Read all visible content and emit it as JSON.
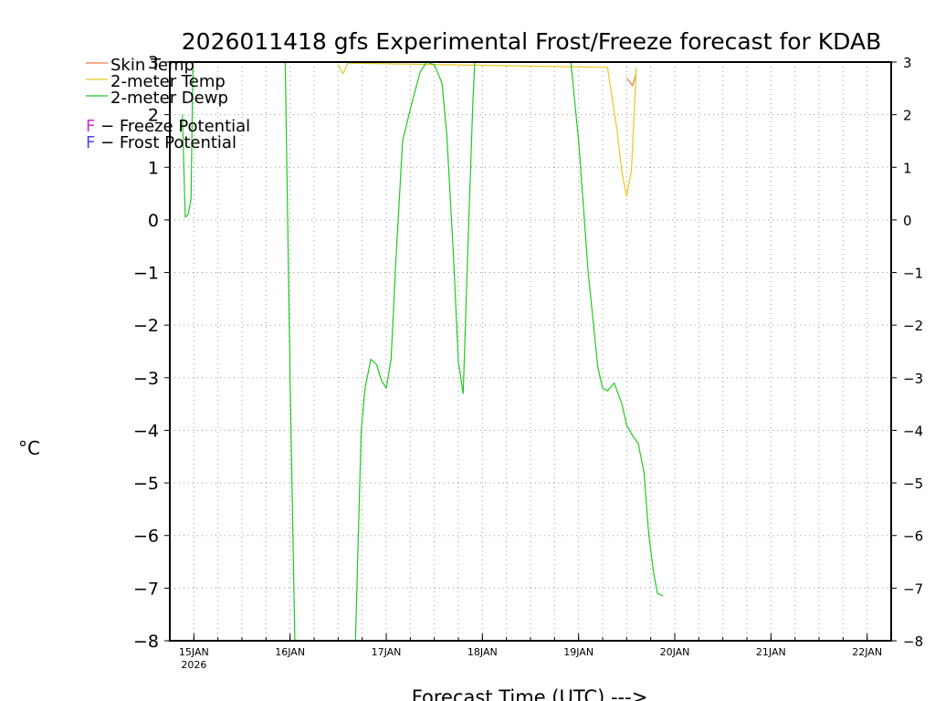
{
  "chart_data": {
    "type": "line",
    "title": "2026011418 gfs Experimental Frost/Freeze forecast for KDAB",
    "xlabel": "Forecast Time (UTC) --->",
    "ylabel": "°C",
    "ylim": [
      -8,
      3
    ],
    "yticks": [
      3,
      2,
      1,
      0,
      -1,
      -2,
      -3,
      -4,
      -5,
      -6,
      -7,
      -8
    ],
    "yticklabels": [
      "3",
      "2",
      "1",
      "0",
      "−1",
      "−2",
      "−3",
      "−4",
      "−5",
      "−6",
      "−7",
      "−8"
    ],
    "xlim_days": [
      14.75,
      22.25
    ],
    "xticks": [
      {
        "day": 15,
        "label": "15JAN",
        "sublabel": "2026"
      },
      {
        "day": 16,
        "label": "16JAN",
        "sublabel": ""
      },
      {
        "day": 17,
        "label": "17JAN",
        "sublabel": ""
      },
      {
        "day": 18,
        "label": "18JAN",
        "sublabel": ""
      },
      {
        "day": 19,
        "label": "19JAN",
        "sublabel": ""
      },
      {
        "day": 20,
        "label": "20JAN",
        "sublabel": ""
      },
      {
        "day": 21,
        "label": "21JAN",
        "sublabel": ""
      },
      {
        "day": 22,
        "label": "22JAN",
        "sublabel": ""
      }
    ],
    "grid": true,
    "series": [
      {
        "name": "Skin Temp",
        "color": "#e87a3c",
        "points": [
          [
            19.5,
            2.7
          ],
          [
            19.56,
            2.55
          ],
          [
            19.6,
            2.8
          ]
        ]
      },
      {
        "name": "2-meter Temp",
        "color": "#e8c81e",
        "points": [
          [
            16.5,
            2.95
          ],
          [
            16.55,
            2.78
          ],
          [
            16.6,
            2.98
          ],
          [
            19.3,
            2.9
          ],
          [
            19.4,
            1.7
          ],
          [
            19.45,
            0.9
          ],
          [
            19.5,
            0.45
          ],
          [
            19.55,
            0.95
          ],
          [
            19.6,
            2.9
          ]
        ]
      },
      {
        "name": "2-meter Dewp",
        "color": "#22c822",
        "points": [
          [
            14.88,
            2.0
          ],
          [
            14.91,
            0.05
          ],
          [
            14.94,
            0.1
          ],
          [
            14.97,
            0.4
          ],
          [
            14.99,
            3.0
          ],
          [
            15.95,
            3.0
          ],
          [
            16.0,
            -3.0
          ],
          [
            16.05,
            -8.0
          ],
          [
            16.68,
            -8.0
          ],
          [
            16.74,
            -4.0
          ],
          [
            16.78,
            -3.2
          ],
          [
            16.84,
            -2.65
          ],
          [
            16.9,
            -2.75
          ],
          [
            16.95,
            -3.05
          ],
          [
            17.0,
            -3.2
          ],
          [
            17.05,
            -2.65
          ],
          [
            17.1,
            -0.8
          ],
          [
            17.17,
            1.5
          ],
          [
            17.25,
            2.1
          ],
          [
            17.35,
            2.8
          ],
          [
            17.42,
            3.0
          ],
          [
            17.5,
            2.95
          ],
          [
            17.58,
            2.6
          ],
          [
            17.63,
            1.6
          ],
          [
            17.7,
            -0.7
          ],
          [
            17.75,
            -2.7
          ],
          [
            17.8,
            -3.3
          ],
          [
            17.85,
            -0.5
          ],
          [
            17.9,
            2.2
          ],
          [
            17.92,
            3.0
          ],
          [
            18.92,
            3.0
          ],
          [
            19.0,
            1.5
          ],
          [
            19.1,
            -1.0
          ],
          [
            19.2,
            -2.8
          ],
          [
            19.25,
            -3.2
          ],
          [
            19.3,
            -3.25
          ],
          [
            19.37,
            -3.1
          ],
          [
            19.45,
            -3.5
          ],
          [
            19.5,
            -3.9
          ],
          [
            19.56,
            -4.1
          ],
          [
            19.62,
            -4.25
          ],
          [
            19.68,
            -4.8
          ],
          [
            19.73,
            -6.0
          ],
          [
            19.78,
            -6.7
          ],
          [
            19.82,
            -7.1
          ],
          [
            19.88,
            -7.15
          ]
        ]
      }
    ],
    "legend": {
      "placement": "top-left",
      "lines": [
        "Skin Temp",
        "2-meter Temp",
        "2-meter Dewp"
      ],
      "potentials": [
        {
          "letter": "F",
          "text": " − Freeze Potential",
          "color": "#c832c8"
        },
        {
          "letter": "F",
          "text": " − Frost Potential",
          "color": "#4a4ae6"
        }
      ]
    }
  }
}
